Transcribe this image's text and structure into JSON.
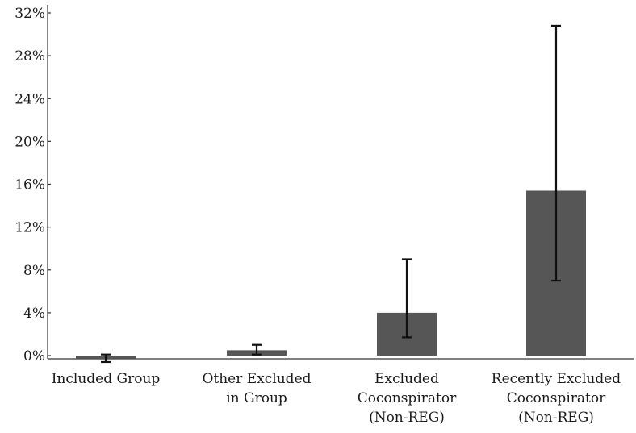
{
  "chart_data": {
    "type": "bar",
    "categories": [
      [
        "Included Group"
      ],
      [
        "Other Excluded",
        "in Group"
      ],
      [
        "Excluded",
        "Coconspirator",
        "(Non-REG)"
      ],
      [
        "Recently Excluded",
        "Coconspirator",
        "(Non-REG)"
      ]
    ],
    "values": [
      -0.3,
      0.5,
      4.0,
      15.4
    ],
    "error_low": [
      -0.6,
      0.1,
      1.7,
      7.0
    ],
    "error_high": [
      0.1,
      1.0,
      9.0,
      30.8
    ],
    "ylim": [
      0,
      32
    ],
    "y_ticks": [
      0,
      4,
      8,
      12,
      16,
      20,
      24,
      28,
      32
    ],
    "y_tick_labels": [
      "0%",
      "4%",
      "8%",
      "12%",
      "16%",
      "20%",
      "24%",
      "28%",
      "32%"
    ],
    "colors": {
      "bar": "#565656",
      "error_bar": "#111111",
      "axis": "#333333"
    },
    "grid": false,
    "title": "",
    "xlabel": "",
    "ylabel": ""
  }
}
